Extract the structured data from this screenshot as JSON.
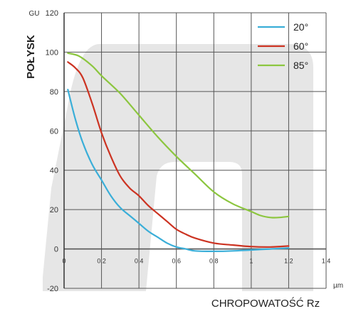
{
  "chart_data": {
    "type": "line",
    "ylabel": "POŁYSK",
    "y_unit": "GU",
    "xlabel": "CHROPOWATOŚĆ Rz",
    "x_unit": "µm",
    "xlim": [
      0,
      1.4
    ],
    "ylim": [
      -20,
      120
    ],
    "x_ticks": [
      0,
      0.2,
      0.4,
      0.6,
      0.8,
      1,
      1.2,
      1.4
    ],
    "x_tick_labels": [
      "0",
      "0.2",
      "0.4",
      "0.6",
      "0.8",
      "1",
      "1.2",
      "1.4"
    ],
    "y_ticks": [
      -20,
      0,
      20,
      40,
      60,
      80,
      100,
      120
    ],
    "y_tick_labels": [
      "-20",
      "0",
      "20",
      "40",
      "60",
      "80",
      "100",
      "120"
    ],
    "grid": true,
    "legend_position": "top-right",
    "watermark_color": "#e6e6e6",
    "series": [
      {
        "name": "20°",
        "color": "#3aaed8",
        "points": [
          [
            0.02,
            81
          ],
          [
            0.06,
            66
          ],
          [
            0.1,
            54
          ],
          [
            0.15,
            43
          ],
          [
            0.2,
            35
          ],
          [
            0.25,
            27
          ],
          [
            0.3,
            21
          ],
          [
            0.35,
            17
          ],
          [
            0.4,
            13
          ],
          [
            0.45,
            9
          ],
          [
            0.5,
            6
          ],
          [
            0.55,
            3
          ],
          [
            0.6,
            1
          ],
          [
            0.65,
            0
          ],
          [
            0.7,
            -1
          ],
          [
            0.8,
            -1.2
          ],
          [
            0.9,
            -1
          ],
          [
            1.0,
            -0.5
          ],
          [
            1.1,
            0
          ],
          [
            1.2,
            0.5
          ]
        ]
      },
      {
        "name": "60°",
        "color": "#cc3322",
        "points": [
          [
            0.02,
            95
          ],
          [
            0.06,
            92
          ],
          [
            0.1,
            87
          ],
          [
            0.15,
            74
          ],
          [
            0.2,
            59
          ],
          [
            0.25,
            47
          ],
          [
            0.3,
            37
          ],
          [
            0.35,
            31
          ],
          [
            0.4,
            27
          ],
          [
            0.45,
            22
          ],
          [
            0.5,
            18
          ],
          [
            0.55,
            14
          ],
          [
            0.6,
            10
          ],
          [
            0.65,
            7.5
          ],
          [
            0.7,
            5.5
          ],
          [
            0.8,
            3
          ],
          [
            0.9,
            2
          ],
          [
            1.0,
            1.2
          ],
          [
            1.1,
            1
          ],
          [
            1.2,
            1.5
          ]
        ]
      },
      {
        "name": "85°",
        "color": "#8cc63f",
        "points": [
          [
            0.02,
            99.5
          ],
          [
            0.08,
            98
          ],
          [
            0.15,
            93
          ],
          [
            0.2,
            88
          ],
          [
            0.3,
            79
          ],
          [
            0.4,
            68
          ],
          [
            0.5,
            57
          ],
          [
            0.6,
            47
          ],
          [
            0.7,
            38
          ],
          [
            0.8,
            29
          ],
          [
            0.9,
            23
          ],
          [
            1.0,
            19
          ],
          [
            1.05,
            17
          ],
          [
            1.1,
            16
          ],
          [
            1.15,
            16
          ],
          [
            1.2,
            16.5
          ]
        ]
      }
    ]
  }
}
